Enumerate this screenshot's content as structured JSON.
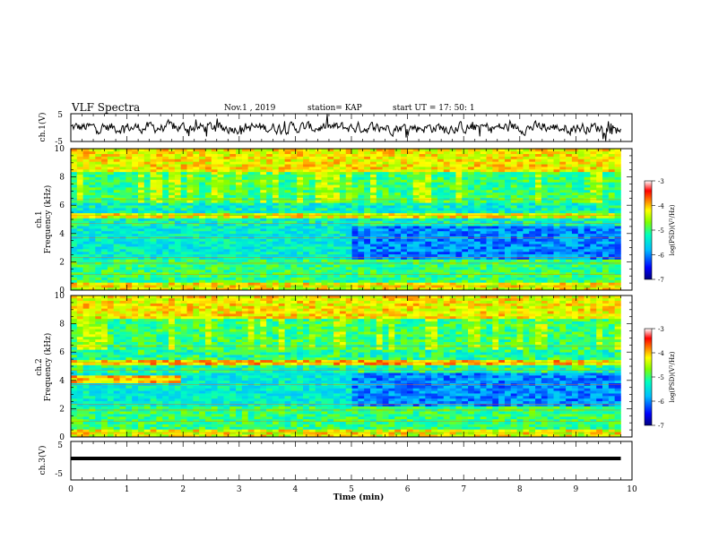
{
  "header": {
    "title": "VLF Spectra",
    "date": "Nov.1 , 2019",
    "station": "station= KAP",
    "start": "start UT = 17: 50: 1"
  },
  "chart_data": [
    {
      "type": "line",
      "name": "waveform-ch1",
      "ylabel": "ch.1(V)",
      "ylim": [
        -5,
        5
      ],
      "yticks": [
        "5",
        "-5"
      ],
      "xlim": [
        0,
        10
      ]
    },
    {
      "type": "heatmap",
      "name": "spectrogram-ch1",
      "ylabel_line1": "ch.1",
      "ylabel_line2": "Frequency (kHz)",
      "ylim": [
        0,
        10
      ],
      "yticks": [
        "0",
        "2",
        "4",
        "6",
        "8",
        "10"
      ],
      "xlim": [
        0,
        9.8
      ],
      "colorbar": {
        "label": "log(PSD)(V²/Hz)",
        "range": [
          -7,
          -3
        ],
        "ticks": [
          "-3",
          "-4",
          "-5",
          "-6",
          "-7"
        ]
      }
    },
    {
      "type": "heatmap",
      "name": "spectrogram-ch2",
      "ylabel_line1": "ch.2",
      "ylabel_line2": "Frequency (kHz)",
      "ylim": [
        0,
        10
      ],
      "yticks": [
        "0",
        "2",
        "4",
        "6",
        "8",
        "10"
      ],
      "xlim": [
        0,
        9.8
      ],
      "colorbar": {
        "label": "log(PSD)(V²/Hz)",
        "range": [
          -7,
          -3
        ],
        "ticks": [
          "-3",
          "-4",
          "-5",
          "-6",
          "-7"
        ]
      }
    },
    {
      "type": "line",
      "name": "waveform-ch3",
      "ylabel": "ch.3(V)",
      "ylim": [
        -5,
        5
      ],
      "yticks": [
        "5",
        "-5"
      ],
      "value": -1,
      "xlim": [
        0,
        10
      ],
      "xlabel": "Time (min)",
      "xticks": [
        "0",
        "1",
        "2",
        "3",
        "4",
        "5",
        "6",
        "7",
        "8",
        "9",
        "10"
      ]
    }
  ],
  "colors": {
    "frame": "#000000",
    "trace": "#000000",
    "colormap": [
      "#00007f",
      "#0000ff",
      "#00bfff",
      "#00ffbf",
      "#7fff00",
      "#ffff00",
      "#ff7f00",
      "#ff0000",
      "#ffffff"
    ]
  }
}
